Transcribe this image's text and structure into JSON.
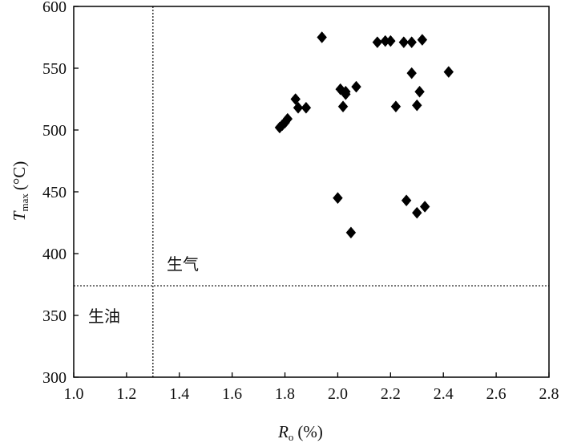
{
  "chart_data": {
    "type": "scatter",
    "title": "",
    "xlabel": {
      "symbol": "R",
      "subscript": "o",
      "unit": "(%)"
    },
    "ylabel": {
      "symbol": "T",
      "subscript": "max",
      "unit": "(°C)"
    },
    "xlim": [
      1.0,
      2.8
    ],
    "ylim": [
      300,
      600
    ],
    "xticks": [
      1.0,
      1.2,
      1.4,
      1.6,
      1.8,
      2.0,
      2.2,
      2.4,
      2.6,
      2.8
    ],
    "yticks": [
      300,
      350,
      400,
      450,
      500,
      550,
      600
    ],
    "xtick_labels": [
      "1.0",
      "1.2",
      "1.4",
      "1.6",
      "1.8",
      "2.0",
      "2.2",
      "2.4",
      "2.6",
      "2.8"
    ],
    "ytick_labels": [
      "300",
      "350",
      "400",
      "450",
      "500",
      "550",
      "600"
    ],
    "grid": false,
    "marker": "diamond",
    "marker_color": "#000000",
    "reference_lines": [
      {
        "orientation": "vertical",
        "value": 1.3,
        "style": "dotted"
      },
      {
        "orientation": "horizontal",
        "value": 374,
        "style": "dotted"
      }
    ],
    "region_labels": [
      "生气",
      "生油"
    ],
    "points": [
      {
        "x": 1.78,
        "y": 502
      },
      {
        "x": 1.79,
        "y": 504
      },
      {
        "x": 1.8,
        "y": 506
      },
      {
        "x": 1.81,
        "y": 509
      },
      {
        "x": 1.84,
        "y": 525
      },
      {
        "x": 1.85,
        "y": 518
      },
      {
        "x": 1.88,
        "y": 518
      },
      {
        "x": 1.94,
        "y": 575
      },
      {
        "x": 2.0,
        "y": 445
      },
      {
        "x": 2.01,
        "y": 533
      },
      {
        "x": 2.02,
        "y": 519
      },
      {
        "x": 2.03,
        "y": 531
      },
      {
        "x": 2.03,
        "y": 529
      },
      {
        "x": 2.05,
        "y": 417
      },
      {
        "x": 2.07,
        "y": 535
      },
      {
        "x": 2.15,
        "y": 571
      },
      {
        "x": 2.18,
        "y": 572
      },
      {
        "x": 2.2,
        "y": 572
      },
      {
        "x": 2.22,
        "y": 519
      },
      {
        "x": 2.25,
        "y": 571
      },
      {
        "x": 2.26,
        "y": 443
      },
      {
        "x": 2.28,
        "y": 546
      },
      {
        "x": 2.28,
        "y": 571
      },
      {
        "x": 2.3,
        "y": 520
      },
      {
        "x": 2.3,
        "y": 433
      },
      {
        "x": 2.31,
        "y": 531
      },
      {
        "x": 2.32,
        "y": 573
      },
      {
        "x": 2.33,
        "y": 438
      },
      {
        "x": 2.42,
        "y": 547
      }
    ]
  }
}
